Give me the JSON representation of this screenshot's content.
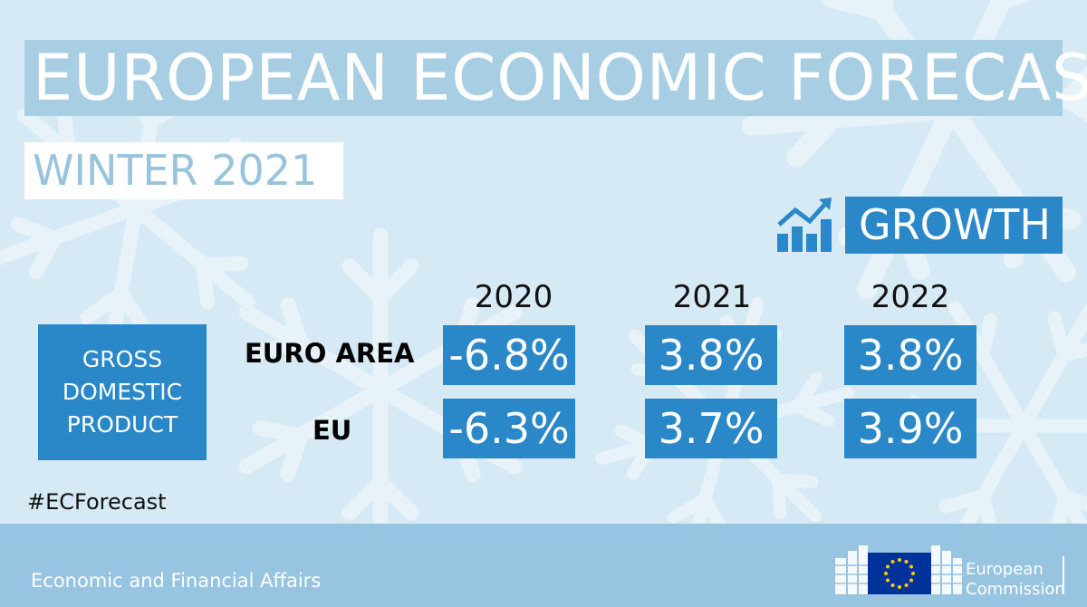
{
  "title": "EUROPEAN ECONOMIC FORECAST",
  "subtitle": "WINTER 2021",
  "growth_label": "GROWTH",
  "years": [
    "2020",
    "2021",
    "2022"
  ],
  "gdp_label_lines": [
    "GROSS",
    "DOMESTIC",
    "PRODUCT"
  ],
  "rows": [
    {
      "label": "EURO AREA",
      "values": [
        "-6.8%",
        "3.8%",
        "3.8%"
      ]
    },
    {
      "label": "EU",
      "values": [
        "-6.3%",
        "3.7%",
        "3.9%"
      ]
    }
  ],
  "hashtag": "#ECForecast",
  "footer_dept": "Economic and Financial Affairs",
  "logo_lines": [
    "European",
    "Commission"
  ],
  "colors": {
    "background": "#d5eaf5",
    "title_box": "#a8cee4",
    "accent_blue": "#2b88c8",
    "footer": "#96c4e1",
    "eu_flag_blue": "#003399",
    "eu_flag_stars": "#ffcc00"
  },
  "icons": [
    "growth-chart-icon",
    "snowflake-icon",
    "eu-flag-icon"
  ]
}
